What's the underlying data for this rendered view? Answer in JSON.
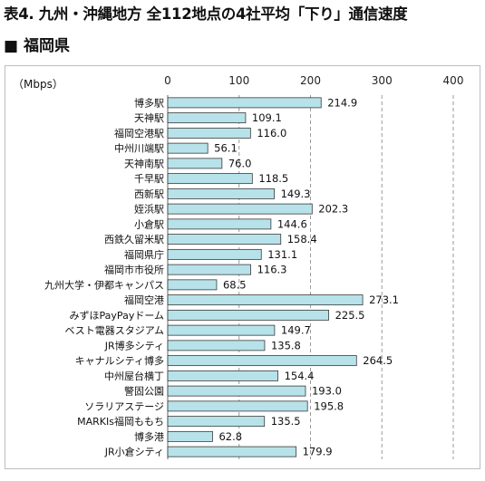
{
  "page": {
    "title": "表4. 九州・沖縄地方 全112地点の4社平均「下り」通信速度",
    "section": "■ 福岡県"
  },
  "chart_data": {
    "type": "bar",
    "orientation": "horizontal",
    "unit_label": "（Mbps）",
    "xlim": [
      0,
      400
    ],
    "ticks": [
      0,
      100,
      200,
      300,
      400
    ],
    "grid": true,
    "bar_color": "#b7e2ea",
    "bar_edge_color": "#3a3a3a",
    "categories": [
      "博多駅",
      "天神駅",
      "福岡空港駅",
      "中州川端駅",
      "天神南駅",
      "千早駅",
      "西新駅",
      "姪浜駅",
      "小倉駅",
      "西鉄久留米駅",
      "福岡県庁",
      "福岡市市役所",
      "九州大学・伊都キャンパス",
      "福岡空港",
      "みずほPayPayドーム",
      "ベスト電器スタジアム",
      "JR博多シティ",
      "キャナルシティ博多",
      "中州屋台横丁",
      "警固公園",
      "ソラリアステージ",
      "MARKIs福岡ももち",
      "博多港",
      "JR小倉シティ"
    ],
    "values": [
      214.9,
      109.1,
      116.0,
      56.1,
      76.0,
      118.5,
      149.3,
      202.3,
      144.6,
      158.4,
      131.1,
      116.3,
      68.5,
      273.1,
      225.5,
      149.7,
      135.8,
      264.5,
      154.4,
      193.0,
      195.8,
      135.5,
      62.8,
      179.9
    ],
    "value_labels": [
      "214.9",
      "109.1",
      "116.0",
      "56.1",
      "76.0",
      "118.5",
      "149.3",
      "202.3",
      "144.6",
      "158.4",
      "131.1",
      "116.3",
      "68.5",
      "273.1",
      "225.5",
      "149.7",
      "135.8",
      "264.5",
      "154.4",
      "193.0",
      "195.8",
      "135.5",
      "62.8",
      "179.9"
    ]
  }
}
